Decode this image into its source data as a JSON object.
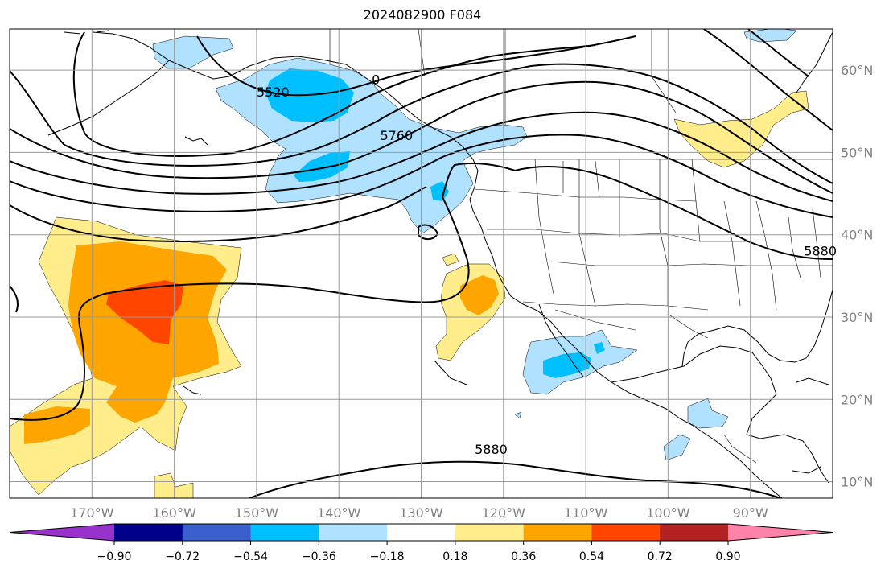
{
  "title": "2024082900 F084",
  "map": {
    "lon_range": [
      -180,
      -80
    ],
    "lat_range": [
      8,
      65
    ],
    "lon_ticks": [
      {
        "value": -170,
        "label": "170°W"
      },
      {
        "value": -160,
        "label": "160°W"
      },
      {
        "value": -150,
        "label": "150°W"
      },
      {
        "value": -140,
        "label": "140°W"
      },
      {
        "value": -130,
        "label": "130°W"
      },
      {
        "value": -120,
        "label": "120°W"
      },
      {
        "value": -110,
        "label": "110°W"
      },
      {
        "value": -100,
        "label": "100°W"
      },
      {
        "value": -90,
        "label": "90°W"
      }
    ],
    "lat_ticks": [
      {
        "value": 10,
        "label": "10°N"
      },
      {
        "value": 20,
        "label": "20°N"
      },
      {
        "value": 30,
        "label": "30°N"
      },
      {
        "value": 40,
        "label": "40°N"
      },
      {
        "value": 50,
        "label": "50°N"
      },
      {
        "value": 60,
        "label": "60°N"
      }
    ],
    "contour_labels": [
      {
        "text": "5520",
        "lon": -148,
        "lat": 56.8
      },
      {
        "text": "5760",
        "lon": -133,
        "lat": 51.5
      },
      {
        "text": "0",
        "lon": -135.5,
        "lat": 58.3
      },
      {
        "text": "5880",
        "lon": -121.5,
        "lat": 13.4
      },
      {
        "text": "5880",
        "lon": -81.5,
        "lat": 37.5
      }
    ]
  },
  "colorbar": {
    "colors": [
      "#9932cc",
      "#00008b",
      "#3a5fcd",
      "#00bfff",
      "#b0e2ff",
      "#ffffff",
      "#ffec8b",
      "#ffa500",
      "#ff4500",
      "#b22222",
      "#ff82ab"
    ],
    "ticks": [
      "−0.90",
      "−0.72",
      "−0.54",
      "−0.36",
      "−0.18",
      "0.18",
      "0.36",
      "0.54",
      "0.72",
      "0.90"
    ]
  },
  "fill_colors": {
    "light_blue": "#b0e2ff",
    "blue": "#00bfff",
    "yellow": "#ffec8b",
    "orange": "#ffa500",
    "red_orange": "#ff4500"
  }
}
